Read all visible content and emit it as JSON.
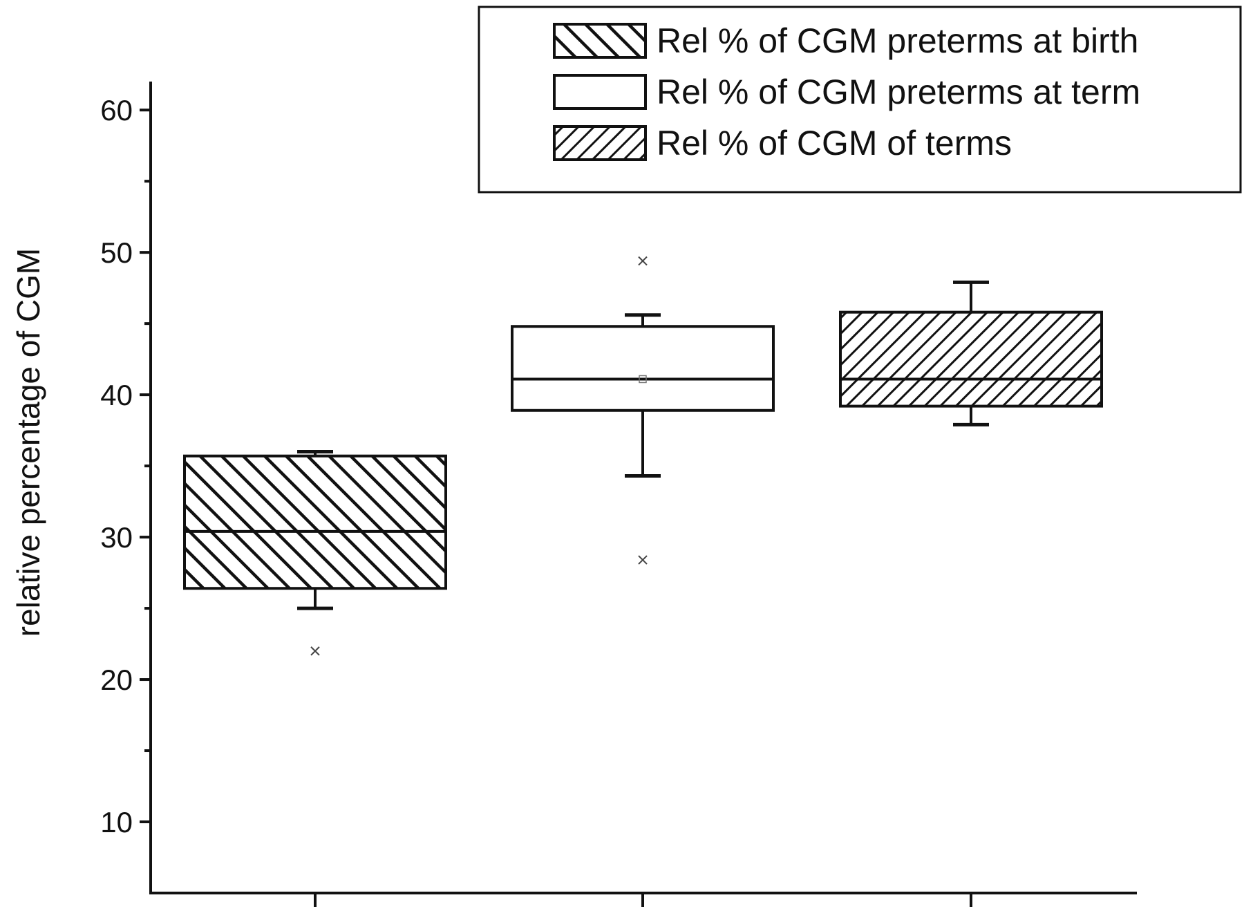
{
  "chart_data": {
    "type": "box",
    "ylabel": "relative percentage of CGM",
    "ylim": [
      5,
      62
    ],
    "y_ticks_major": [
      10,
      20,
      30,
      40,
      50,
      60
    ],
    "y_ticks_minor": [
      15,
      25,
      35,
      45,
      55
    ],
    "legend_position": "top-right",
    "series": [
      {
        "name": "Rel % of CGM preterms at birth",
        "pattern": "hatch-backslash",
        "whisker_low": 25.0,
        "q1": 26.4,
        "median": 30.4,
        "q3": 35.7,
        "whisker_high": 36.0,
        "outliers": [
          22.0
        ]
      },
      {
        "name": "Rel % of CGM preterms at term",
        "pattern": "none",
        "whisker_low": 34.3,
        "q1": 38.9,
        "median": 41.1,
        "q3": 44.8,
        "whisker_high": 45.6,
        "mean": 41.1,
        "outliers": [
          28.4,
          49.4
        ]
      },
      {
        "name": "Rel % of CGM of terms",
        "pattern": "hatch-slash",
        "whisker_low": 37.9,
        "q1": 39.2,
        "median": 41.1,
        "q3": 45.8,
        "whisker_high": 47.9,
        "outliers": []
      }
    ]
  },
  "colors": {
    "ink": "#111111",
    "background": "#ffffff"
  }
}
